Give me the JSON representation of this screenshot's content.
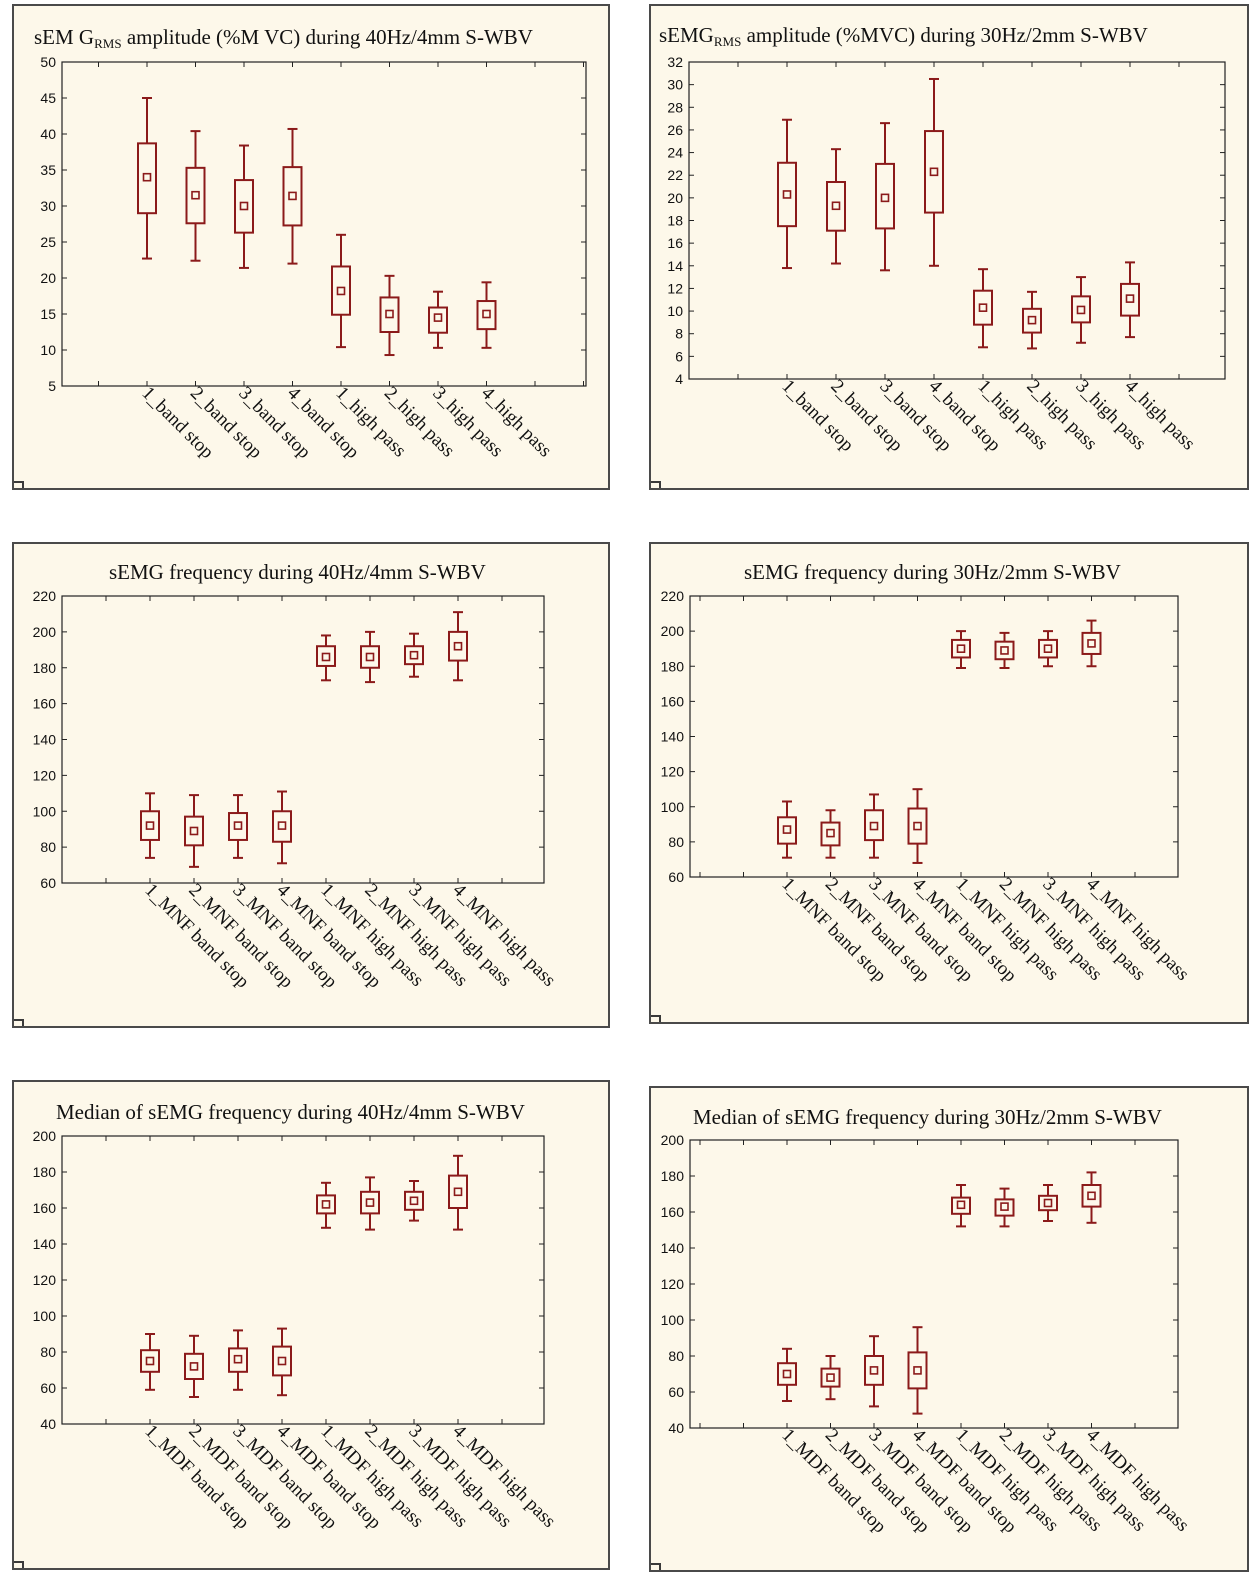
{
  "colors": {
    "box": "#8b1a1a",
    "panel_bg": "#fdf8ea",
    "frame": "#4a4a4a"
  },
  "chart_data": [
    {
      "type": "box",
      "title": {
        "pre": "sEM G",
        "sub": "RMS",
        "post": " amplitude (%M VC) during 40Hz/4mm S-WBV"
      },
      "ylim": [
        5,
        50
      ],
      "yticks": [
        5,
        10,
        15,
        20,
        25,
        30,
        35,
        40,
        45,
        50
      ],
      "categories": [
        "1_band stop",
        "2_band stop",
        "3_band stop",
        "4_band stop",
        "1_high pass",
        "2_high pass",
        "3_high pass",
        "4_high pass"
      ],
      "series": [
        {
          "mean": 34.0,
          "box_low": 29.0,
          "box_high": 38.7,
          "whisker_low": 22.7,
          "whisker_high": 45.0
        },
        {
          "mean": 31.5,
          "box_low": 27.6,
          "box_high": 35.3,
          "whisker_low": 22.4,
          "whisker_high": 40.4
        },
        {
          "mean": 30.0,
          "box_low": 26.3,
          "box_high": 33.6,
          "whisker_low": 21.4,
          "whisker_high": 38.4
        },
        {
          "mean": 31.4,
          "box_low": 27.3,
          "box_high": 35.4,
          "whisker_low": 22.0,
          "whisker_high": 40.7
        },
        {
          "mean": 18.2,
          "box_low": 14.9,
          "box_high": 21.6,
          "whisker_low": 10.4,
          "whisker_high": 26.0
        },
        {
          "mean": 15.0,
          "box_low": 12.5,
          "box_high": 17.3,
          "whisker_low": 9.3,
          "whisker_high": 20.3
        },
        {
          "mean": 14.5,
          "box_low": 12.4,
          "box_high": 15.9,
          "whisker_low": 10.3,
          "whisker_high": 18.1
        },
        {
          "mean": 15.0,
          "box_low": 12.9,
          "box_high": 16.8,
          "whisker_low": 10.3,
          "whisker_high": 19.4
        }
      ]
    },
    {
      "type": "box",
      "title": {
        "pre": "sEMG",
        "sub": "RMS",
        "post": " amplitude (%MVC) during 30Hz/2mm S-WBV"
      },
      "ylim": [
        4,
        32
      ],
      "yticks": [
        4,
        6,
        8,
        10,
        12,
        14,
        16,
        18,
        20,
        22,
        24,
        26,
        28,
        30,
        32
      ],
      "categories": [
        "1_band stop",
        "2_band stop",
        "3_band stop",
        "4_band stop",
        "1_high pass",
        "2_high pass",
        "3_high pass",
        "4_high pass"
      ],
      "series": [
        {
          "mean": 20.3,
          "box_low": 17.5,
          "box_high": 23.1,
          "whisker_low": 13.8,
          "whisker_high": 26.9
        },
        {
          "mean": 19.3,
          "box_low": 17.1,
          "box_high": 21.4,
          "whisker_low": 14.2,
          "whisker_high": 24.3
        },
        {
          "mean": 20.0,
          "box_low": 17.3,
          "box_high": 23.0,
          "whisker_low": 13.6,
          "whisker_high": 26.6
        },
        {
          "mean": 22.3,
          "box_low": 18.7,
          "box_high": 25.9,
          "whisker_low": 14.0,
          "whisker_high": 30.5
        },
        {
          "mean": 10.3,
          "box_low": 8.8,
          "box_high": 11.8,
          "whisker_low": 6.8,
          "whisker_high": 13.7
        },
        {
          "mean": 9.2,
          "box_low": 8.1,
          "box_high": 10.2,
          "whisker_low": 6.7,
          "whisker_high": 11.7
        },
        {
          "mean": 10.1,
          "box_low": 9.0,
          "box_high": 11.3,
          "whisker_low": 7.2,
          "whisker_high": 13.0
        },
        {
          "mean": 11.1,
          "box_low": 9.6,
          "box_high": 12.4,
          "whisker_low": 7.7,
          "whisker_high": 14.3
        }
      ]
    },
    {
      "type": "box",
      "title": {
        "pre": "sEMG frequency during 40Hz/4mm S-WBV",
        "sub": "",
        "post": ""
      },
      "ylim": [
        60,
        220
      ],
      "yticks": [
        60,
        80,
        100,
        120,
        140,
        160,
        180,
        200,
        220
      ],
      "categories": [
        "1_MNF band stop",
        "2_MNF band stop",
        "3_MNF band stop",
        "4_MNF band stop",
        "1_MNF high pass",
        "2_MNF high pass",
        "3_MNF high pass",
        "4_MNF high pass"
      ],
      "series": [
        {
          "mean": 92,
          "box_low": 84,
          "box_high": 100,
          "whisker_low": 74,
          "whisker_high": 110
        },
        {
          "mean": 89,
          "box_low": 81,
          "box_high": 97,
          "whisker_low": 69,
          "whisker_high": 109
        },
        {
          "mean": 92,
          "box_low": 84,
          "box_high": 99,
          "whisker_low": 74,
          "whisker_high": 109
        },
        {
          "mean": 92,
          "box_low": 83,
          "box_high": 100,
          "whisker_low": 71,
          "whisker_high": 111
        },
        {
          "mean": 186,
          "box_low": 181,
          "box_high": 192,
          "whisker_low": 173,
          "whisker_high": 198
        },
        {
          "mean": 186,
          "box_low": 180,
          "box_high": 192,
          "whisker_low": 172,
          "whisker_high": 200
        },
        {
          "mean": 187,
          "box_low": 182,
          "box_high": 192,
          "whisker_low": 175,
          "whisker_high": 199
        },
        {
          "mean": 192,
          "box_low": 184,
          "box_high": 200,
          "whisker_low": 173,
          "whisker_high": 211
        }
      ]
    },
    {
      "type": "box",
      "title": {
        "pre": "sEMG frequency during 30Hz/2mm S-WBV",
        "sub": "",
        "post": ""
      },
      "ylim": [
        60,
        220
      ],
      "yticks": [
        60,
        80,
        100,
        120,
        140,
        160,
        180,
        200,
        220
      ],
      "categories": [
        "1_MNF band stop",
        "2_MNF band stop",
        "3_MNF band stop",
        "4_MNF band stop",
        "1_MNF high pass",
        "2_MNF high pass",
        "3_MNF high pass",
        "4_MNF high pass"
      ],
      "series": [
        {
          "mean": 87,
          "box_low": 79,
          "box_high": 94,
          "whisker_low": 71,
          "whisker_high": 103
        },
        {
          "mean": 85,
          "box_low": 78,
          "box_high": 91,
          "whisker_low": 71,
          "whisker_high": 98
        },
        {
          "mean": 89,
          "box_low": 81,
          "box_high": 98,
          "whisker_low": 71,
          "whisker_high": 107
        },
        {
          "mean": 89,
          "box_low": 79,
          "box_high": 99,
          "whisker_low": 68,
          "whisker_high": 110
        },
        {
          "mean": 190,
          "box_low": 185,
          "box_high": 195,
          "whisker_low": 179,
          "whisker_high": 200
        },
        {
          "mean": 189,
          "box_low": 184,
          "box_high": 194,
          "whisker_low": 179,
          "whisker_high": 199
        },
        {
          "mean": 190,
          "box_low": 185,
          "box_high": 195,
          "whisker_low": 180,
          "whisker_high": 200
        },
        {
          "mean": 193,
          "box_low": 187,
          "box_high": 199,
          "whisker_low": 180,
          "whisker_high": 206
        }
      ]
    },
    {
      "type": "box",
      "title": {
        "pre": "Median of sEMG frequency during 40Hz/4mm S-WBV",
        "sub": "",
        "post": ""
      },
      "ylim": [
        40,
        200
      ],
      "yticks": [
        40,
        60,
        80,
        100,
        120,
        140,
        160,
        180,
        200
      ],
      "categories": [
        "1_MDF band stop",
        "2_MDF band stop",
        "3_MDF band stop",
        "4_MDF band stop",
        "1_MDF high pass",
        "2_MDF high pass",
        "3_MDF high pass",
        "4_MDF high pass"
      ],
      "series": [
        {
          "mean": 75,
          "box_low": 69,
          "box_high": 81,
          "whisker_low": 59,
          "whisker_high": 90
        },
        {
          "mean": 72,
          "box_low": 65,
          "box_high": 79,
          "whisker_low": 55,
          "whisker_high": 89
        },
        {
          "mean": 76,
          "box_low": 69,
          "box_high": 82,
          "whisker_low": 59,
          "whisker_high": 92
        },
        {
          "mean": 75,
          "box_low": 67,
          "box_high": 83,
          "whisker_low": 56,
          "whisker_high": 93
        },
        {
          "mean": 162,
          "box_low": 157,
          "box_high": 167,
          "whisker_low": 149,
          "whisker_high": 174
        },
        {
          "mean": 163,
          "box_low": 157,
          "box_high": 169,
          "whisker_low": 148,
          "whisker_high": 177
        },
        {
          "mean": 164,
          "box_low": 159,
          "box_high": 169,
          "whisker_low": 153,
          "whisker_high": 175
        },
        {
          "mean": 169,
          "box_low": 160,
          "box_high": 178,
          "whisker_low": 148,
          "whisker_high": 189
        }
      ]
    },
    {
      "type": "box",
      "title": {
        "pre": "Median of sEMG frequency during 30Hz/2mm S-WBV",
        "sub": "",
        "post": ""
      },
      "ylim": [
        40,
        200
      ],
      "yticks": [
        40,
        60,
        80,
        100,
        120,
        140,
        160,
        180,
        200
      ],
      "categories": [
        "1_MDF band stop",
        "2_MDF band stop",
        "3_MDF band stop",
        "4_MDF band stop",
        "1_MDF high pass",
        "2_MDF high pass",
        "3_MDF high pass",
        "4_MDF high pass"
      ],
      "series": [
        {
          "mean": 70,
          "box_low": 64,
          "box_high": 76,
          "whisker_low": 55,
          "whisker_high": 84
        },
        {
          "mean": 68,
          "box_low": 63,
          "box_high": 73,
          "whisker_low": 56,
          "whisker_high": 80
        },
        {
          "mean": 72,
          "box_low": 64,
          "box_high": 80,
          "whisker_low": 52,
          "whisker_high": 91
        },
        {
          "mean": 72,
          "box_low": 62,
          "box_high": 82,
          "whisker_low": 48,
          "whisker_high": 96
        },
        {
          "mean": 164,
          "box_low": 159,
          "box_high": 168,
          "whisker_low": 152,
          "whisker_high": 175
        },
        {
          "mean": 163,
          "box_low": 158,
          "box_high": 167,
          "whisker_low": 152,
          "whisker_high": 173
        },
        {
          "mean": 165,
          "box_low": 161,
          "box_high": 169,
          "whisker_low": 155,
          "whisker_high": 175
        },
        {
          "mean": 169,
          "box_low": 163,
          "box_high": 175,
          "whisker_low": 154,
          "whisker_high": 182
        }
      ]
    }
  ]
}
